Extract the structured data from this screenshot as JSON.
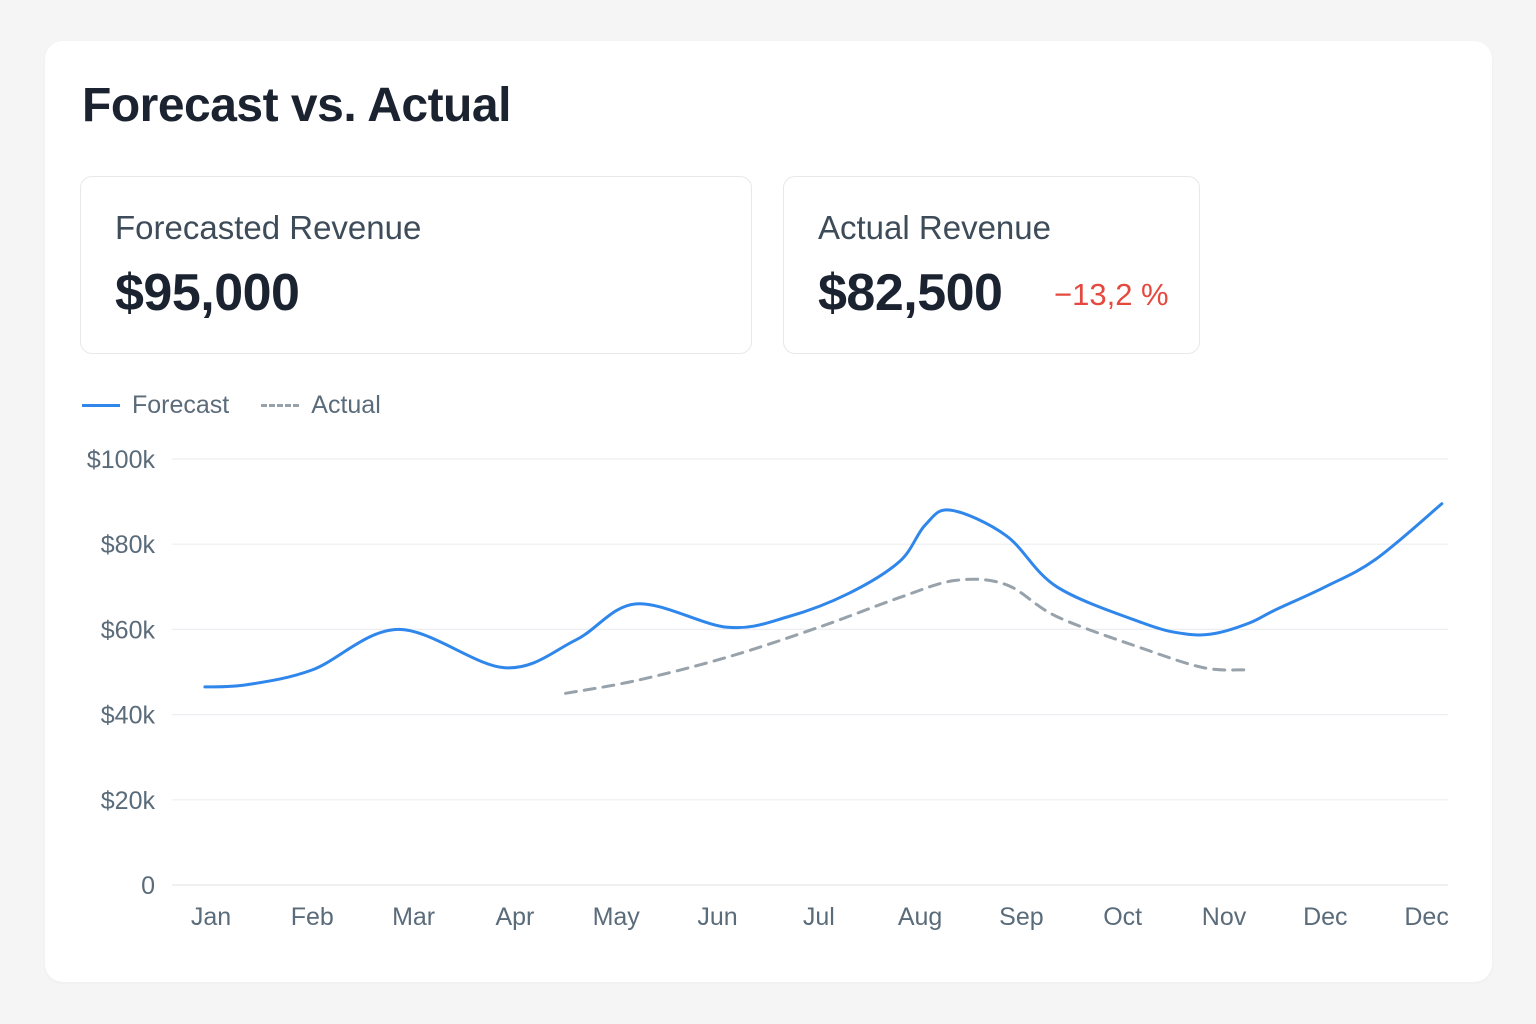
{
  "header": {
    "title": "Forecast vs. Actual"
  },
  "kpis": {
    "forecast": {
      "label": "Forecasted Revenue",
      "value": "$95,000"
    },
    "actual": {
      "label": "Actual Revenue",
      "value": "$82,500",
      "delta": "−13,2 %"
    }
  },
  "colors": {
    "forecast": "#2f86eb",
    "actual": "#97a2ab",
    "delta_negative": "#e5483f"
  },
  "chart_data": {
    "type": "line",
    "categories": [
      "Jan",
      "Feb",
      "Mar",
      "Apr",
      "May",
      "Jun",
      "Jul",
      "Aug",
      "Sep",
      "Oct",
      "Nov",
      "Dec",
      "Dec"
    ],
    "ylim": [
      0,
      100000
    ],
    "y_ticks": [
      0,
      20000,
      40000,
      60000,
      80000,
      100000
    ],
    "y_tick_labels": [
      "0",
      "$20k",
      "$40k",
      "$60k",
      "$80k",
      "$100k"
    ],
    "grid": true,
    "legend": "top-left",
    "series": [
      {
        "name": "Forecast",
        "style": "solid",
        "x": [
          -0.06,
          0.35,
          1.0,
          1.85,
          2.9,
          3.6,
          4.2,
          5.1,
          5.7,
          6.3,
          6.8,
          7.05,
          7.3,
          7.85,
          8.35,
          9.2,
          9.6,
          9.9,
          10.25,
          10.5,
          11.0,
          11.5,
          12.15
        ],
        "values": [
          46500,
          47000,
          50500,
          60000,
          51000,
          57500,
          66000,
          60500,
          63000,
          68500,
          76000,
          84500,
          88000,
          82000,
          70000,
          61500,
          59000,
          59000,
          61500,
          64500,
          70000,
          76500,
          89500
        ]
      },
      {
        "name": "Actual",
        "style": "dashed",
        "x": [
          3.5,
          4.2,
          5.1,
          6.0,
          6.8,
          7.35,
          7.85,
          8.35,
          9.2,
          9.8,
          10.2
        ],
        "values": [
          45000,
          48000,
          53500,
          60500,
          67500,
          71500,
          70500,
          63000,
          55500,
          51000,
          50500
        ]
      }
    ]
  }
}
